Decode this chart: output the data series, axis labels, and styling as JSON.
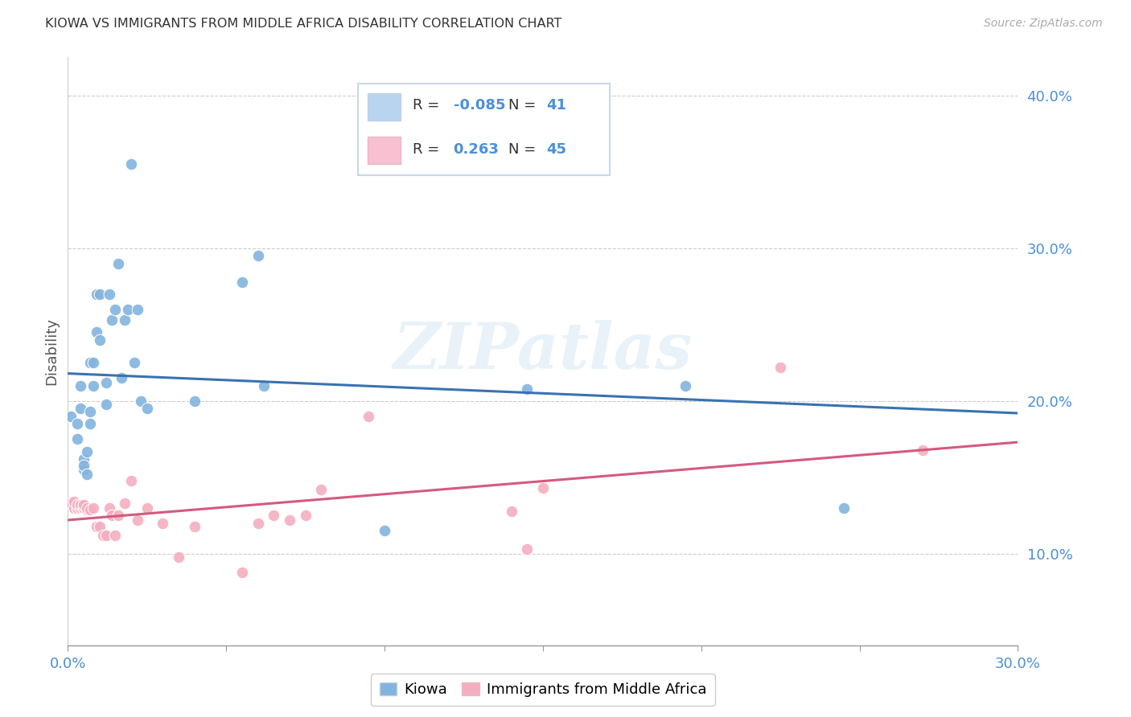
{
  "title": "KIOWA VS IMMIGRANTS FROM MIDDLE AFRICA DISABILITY CORRELATION CHART",
  "source": "Source: ZipAtlas.com",
  "ylabel": "Disability",
  "xlim": [
    0.0,
    0.3
  ],
  "ylim": [
    0.04,
    0.425
  ],
  "yticks": [
    0.1,
    0.2,
    0.3,
    0.4
  ],
  "xticks": [
    0.0,
    0.05,
    0.1,
    0.15,
    0.2,
    0.25,
    0.3
  ],
  "xtick_labels_show": [
    "0.0%",
    "30.0%"
  ],
  "ytick_labels": [
    "10.0%",
    "20.0%",
    "30.0%",
    "40.0%"
  ],
  "blue_color": "#82b4de",
  "pink_color": "#f4aec0",
  "line_blue": "#3a72b0",
  "line_pink": "#d45a80",
  "legend_box_blue": "#b8d4ee",
  "legend_box_pink": "#f8c0d0",
  "watermark": "ZIPatlas",
  "legend_R_blue": "-0.085",
  "legend_N_blue": "41",
  "legend_R_pink": "0.263",
  "legend_N_pink": "45",
  "legend_label_blue": "Kiowa",
  "legend_label_pink": "Immigrants from Middle Africa",
  "text_blue": "#4a90d9",
  "text_pink": "#d44a7a",
  "tick_color": "#4a90d9",
  "grid_color": "#cccccc",
  "kiowa_x": [
    0.001,
    0.003,
    0.003,
    0.004,
    0.004,
    0.005,
    0.005,
    0.005,
    0.006,
    0.006,
    0.007,
    0.007,
    0.007,
    0.008,
    0.008,
    0.009,
    0.009,
    0.01,
    0.01,
    0.012,
    0.012,
    0.013,
    0.014,
    0.015,
    0.016,
    0.017,
    0.018,
    0.019,
    0.02,
    0.021,
    0.022,
    0.023,
    0.025,
    0.04,
    0.055,
    0.06,
    0.062,
    0.1,
    0.145,
    0.195,
    0.245
  ],
  "kiowa_y": [
    0.19,
    0.175,
    0.185,
    0.195,
    0.21,
    0.155,
    0.162,
    0.158,
    0.152,
    0.167,
    0.193,
    0.185,
    0.225,
    0.21,
    0.225,
    0.245,
    0.27,
    0.27,
    0.24,
    0.198,
    0.212,
    0.27,
    0.253,
    0.26,
    0.29,
    0.215,
    0.253,
    0.26,
    0.355,
    0.225,
    0.26,
    0.2,
    0.195,
    0.2,
    0.278,
    0.295,
    0.21,
    0.115,
    0.208,
    0.21,
    0.13
  ],
  "pink_x": [
    0.001,
    0.002,
    0.002,
    0.003,
    0.003,
    0.003,
    0.004,
    0.004,
    0.004,
    0.005,
    0.005,
    0.005,
    0.005,
    0.005,
    0.006,
    0.006,
    0.007,
    0.008,
    0.009,
    0.01,
    0.011,
    0.012,
    0.013,
    0.014,
    0.015,
    0.016,
    0.018,
    0.02,
    0.022,
    0.025,
    0.03,
    0.035,
    0.04,
    0.055,
    0.06,
    0.065,
    0.07,
    0.075,
    0.08,
    0.095,
    0.14,
    0.145,
    0.15,
    0.225,
    0.27
  ],
  "pink_y": [
    0.133,
    0.13,
    0.134,
    0.13,
    0.13,
    0.132,
    0.13,
    0.13,
    0.132,
    0.13,
    0.13,
    0.13,
    0.132,
    0.132,
    0.129,
    0.13,
    0.129,
    0.13,
    0.118,
    0.118,
    0.112,
    0.112,
    0.13,
    0.125,
    0.112,
    0.125,
    0.133,
    0.148,
    0.122,
    0.13,
    0.12,
    0.098,
    0.118,
    0.088,
    0.12,
    0.125,
    0.122,
    0.125,
    0.142,
    0.19,
    0.128,
    0.103,
    0.143,
    0.222,
    0.168
  ],
  "blue_trendline_x": [
    0.0,
    0.3
  ],
  "blue_trendline_y": [
    0.218,
    0.192
  ],
  "pink_trendline_x": [
    0.0,
    0.3
  ],
  "pink_trendline_y": [
    0.122,
    0.173
  ]
}
